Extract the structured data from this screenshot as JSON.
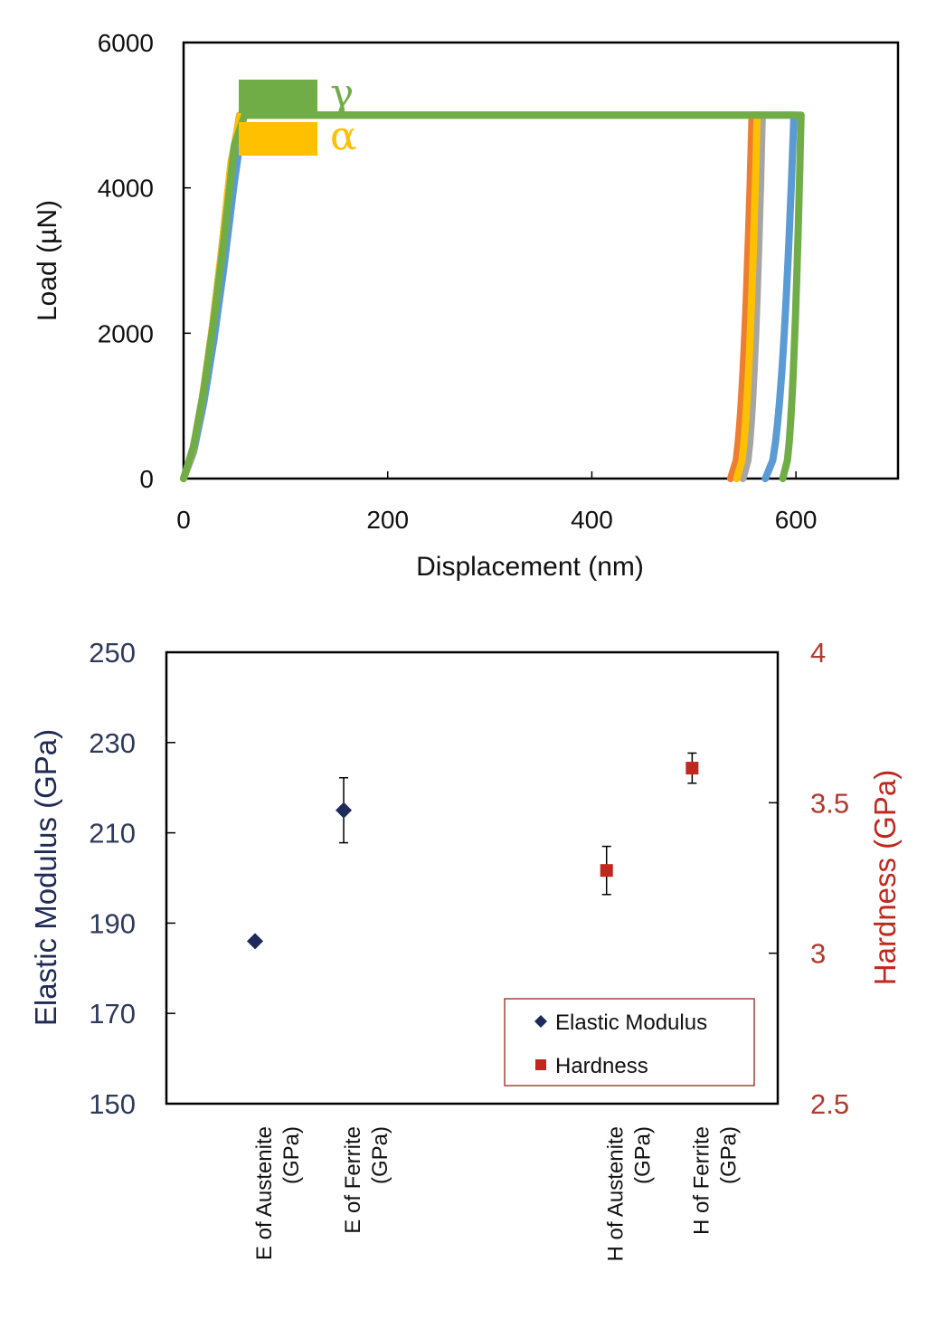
{
  "chart_data": [
    {
      "type": "line",
      "xlabel": "Displacement (nm)",
      "ylabel": "Load (µN)",
      "xlim": [
        0,
        700
      ],
      "ylim": [
        0,
        6000
      ],
      "x_ticks": [
        "0",
        "200",
        "400",
        "600"
      ],
      "y_ticks": [
        "0",
        "2000",
        "4000",
        "6000"
      ],
      "grid": false,
      "legend": {
        "position": "top-left",
        "entries": [
          {
            "label": "γ",
            "color": "#70ad47"
          },
          {
            "label": "α",
            "color": "#ffc000"
          }
        ]
      },
      "series": [
        {
          "color": "#5b9bd5",
          "max_x": 590,
          "max_y": 5000,
          "hold_end_x": 598,
          "residual_x": 570,
          "loading_k": 12.6,
          "exponent": 1.48
        },
        {
          "color": "#a5a5a5",
          "max_x": 560,
          "max_y": 5000,
          "hold_end_x": 567,
          "residual_x": 548,
          "loading_k": 14.8,
          "exponent": 1.48
        },
        {
          "color": "#ed7d31",
          "max_x": 550,
          "max_y": 5000,
          "hold_end_x": 557,
          "residual_x": 536,
          "loading_k": 14.8,
          "exponent": 1.48
        },
        {
          "color": "#ffc000",
          "max_x": 555,
          "max_y": 5000,
          "hold_end_x": 562,
          "residual_x": 542,
          "loading_k": 14.8,
          "exponent": 1.48
        },
        {
          "color": "#70ad47",
          "max_x": 598,
          "max_y": 5000,
          "hold_end_x": 605,
          "residual_x": 587,
          "loading_k": 16.5,
          "exponent": 1.44
        }
      ]
    },
    {
      "type": "scatter",
      "categories": [
        "E of Austenite (GPa)",
        "E of Ferrite (GPa)",
        "H of Austenite (GPa)",
        "H of Ferrite (GPa)"
      ],
      "category_lines": [
        [
          "E of Austenite",
          "(GPa)"
        ],
        [
          "E of Ferrite",
          "(GPa)"
        ],
        [
          "H of Austenite",
          "(GPa)"
        ],
        [
          "H of Ferrite",
          "(GPa)"
        ]
      ],
      "ylabel": "Elastic Modulus (GPa)",
      "y2label": "Hardness (GPa)",
      "ylim": [
        150,
        250
      ],
      "y2lim": [
        2.5,
        4
      ],
      "y_ticks": [
        "150",
        "170",
        "190",
        "210",
        "230",
        "250"
      ],
      "y2_ticks": [
        "2.5",
        "3",
        "3.5",
        "4"
      ],
      "legend": {
        "position": "bottom-right",
        "entries": [
          {
            "label": "Elastic Modulus",
            "marker": "diamond",
            "color": "#1f2a5c"
          },
          {
            "label": "Hardness",
            "marker": "square",
            "color": "#c0271d"
          }
        ]
      },
      "series": [
        {
          "name": "Elastic Modulus",
          "axis": "left",
          "marker": "diamond",
          "color": "#1f2a5c",
          "points": [
            {
              "category": 0,
              "value": 186,
              "error": 0.6
            },
            {
              "category": 1,
              "value": 215,
              "error": 7.2
            }
          ]
        },
        {
          "name": "Hardness",
          "axis": "right",
          "marker": "square",
          "color": "#c0271d",
          "points": [
            {
              "category": 2,
              "value": 3.275,
              "error": 0.08
            },
            {
              "category": 3,
              "value": 3.615,
              "error": 0.05
            }
          ]
        }
      ]
    }
  ]
}
